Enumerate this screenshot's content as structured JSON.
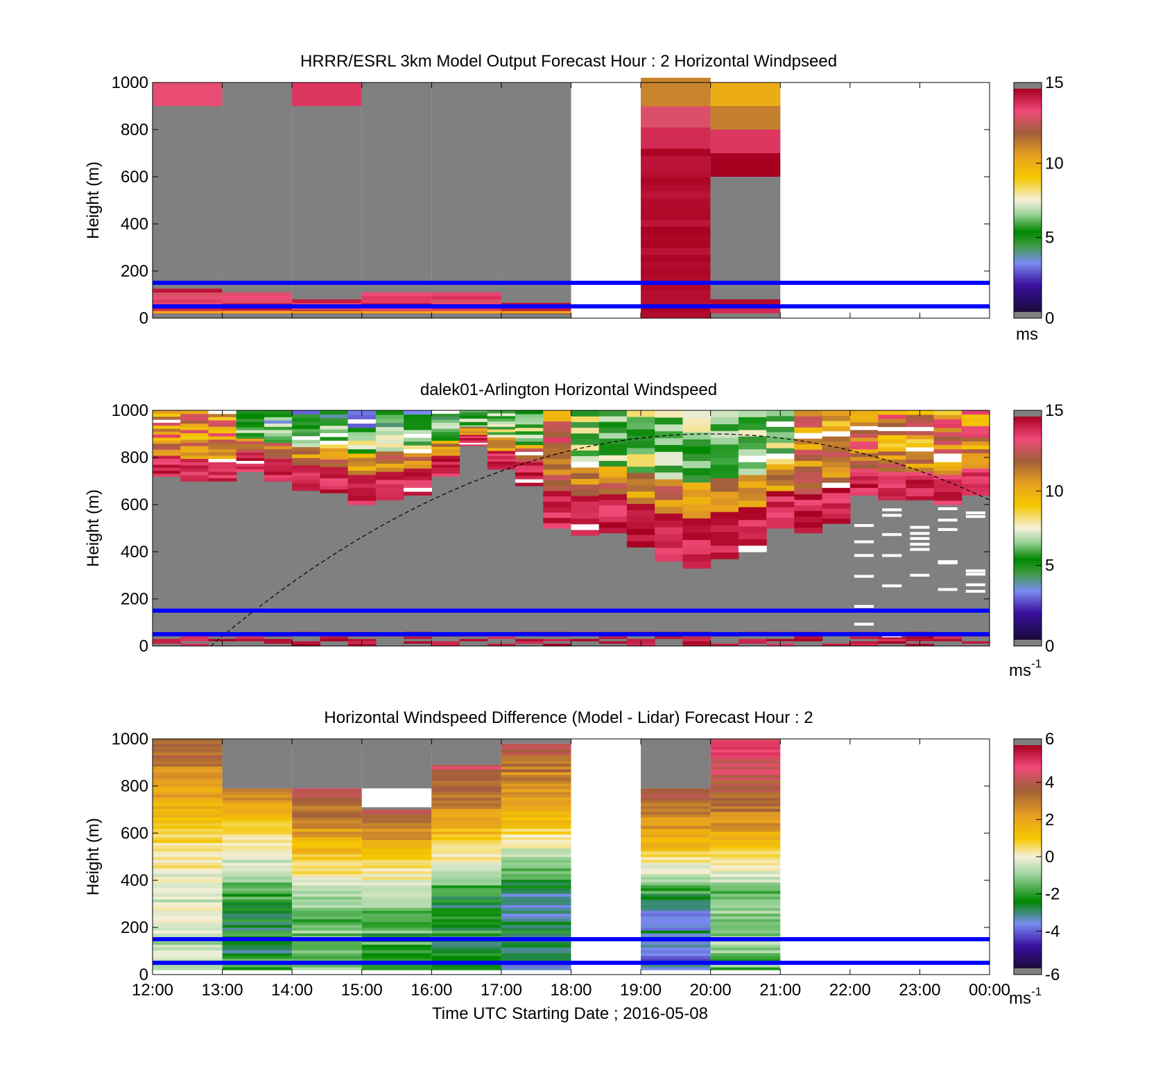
{
  "figure": {
    "xlabel": "Time UTC  Starting Date ; 2016-05-08",
    "x_ticks": [
      "12:00",
      "13:00",
      "14:00",
      "15:00",
      "16:00",
      "17:00",
      "18:00",
      "19:00",
      "20:00",
      "21:00",
      "22:00",
      "23:00",
      "00:00"
    ]
  },
  "colors": {
    "missing": "#808080",
    "overlay_lines": "#0000ff",
    "wind_colormap": [
      "#1a0a3a",
      "#3a10a0",
      "#7a8cf0",
      "#3c9a3c",
      "#008800",
      "#9ed49e",
      "#f5f0dc",
      "#f5c800",
      "#e8a020",
      "#a0603a",
      "#f04a78",
      "#a80020"
    ],
    "diff_colormap": [
      "#1a0a3a",
      "#3a10a0",
      "#7a8cf0",
      "#008800",
      "#9ed49e",
      "#f5f0dc",
      "#f5c800",
      "#e8a020",
      "#a0603a",
      "#f04a78",
      "#a80020"
    ]
  },
  "chart_data": [
    {
      "type": "heatmap",
      "title": "HRRR/ESRL 3km Model Output   Forecast Hour : 2 Horizontal Windpseed",
      "ylabel": "Height (m)",
      "xlim": [
        "12:00",
        "00:00"
      ],
      "ylim": [
        0,
        1000
      ],
      "y_ticks": [
        "0",
        "200",
        "400",
        "600",
        "800",
        "1000"
      ],
      "colorbar": {
        "ticks": [
          "0",
          "5",
          "10",
          "15"
        ],
        "range": [
          0,
          15
        ],
        "unit_label": "ms",
        "unit_sup": ""
      },
      "reference_lines_m": [
        50,
        150
      ],
      "columns": [
        {
          "start": "12:00",
          "end": "13:00",
          "top_m": 1000,
          "profile": "model_low_jet_a"
        },
        {
          "start": "13:00",
          "end": "14:00",
          "top_m": 1000,
          "profile": "model_low_jet_b"
        },
        {
          "start": "14:00",
          "end": "15:00",
          "top_m": 1000,
          "profile": "model_low_jet_c"
        },
        {
          "start": "15:00",
          "end": "16:00",
          "top_m": 1000,
          "profile": "model_low_jet_b"
        },
        {
          "start": "16:00",
          "end": "17:00",
          "top_m": 1000,
          "profile": "model_low_jet_b"
        },
        {
          "start": "17:00",
          "end": "18:00",
          "top_m": 1000,
          "profile": "model_low_jet_d"
        },
        {
          "start": "19:00",
          "end": "20:00",
          "top_m": 1000,
          "profile": "model_full_strong"
        },
        {
          "start": "20:00",
          "end": "21:00",
          "top_m": 1000,
          "profile": "model_upper_strong"
        }
      ],
      "note_values_ms": {
        "12:00-13:00 above 900 m": 13.5,
        "14:00-15:00 above 900 m": 14,
        "19:00-20:00 at 950 m": 11.5,
        "19:00-20:00 at 850 m": 13,
        "19:00-20:00 at 400 m": 15,
        "20:00-21:00 at 950 m": 10.5,
        "20:00-21:00 at 850 m": 11.5,
        "20:00-21:00 at 750 m": 14,
        "20:00-21:00 at 650 m": 15
      }
    },
    {
      "type": "heatmap",
      "title": "dalek01-Arlington  Horizontal Windspeed",
      "ylabel": "Height (m)",
      "xlim": [
        "12:00",
        "00:00"
      ],
      "ylim": [
        0,
        1000
      ],
      "y_ticks": [
        "0",
        "200",
        "400",
        "600",
        "800",
        "1000"
      ],
      "colorbar": {
        "ticks": [
          "0",
          "5",
          "10",
          "15"
        ],
        "range": [
          0,
          15
        ],
        "unit_label": "ms",
        "unit_sup": "-1"
      },
      "reference_lines_m": [
        50,
        150
      ],
      "boundary_curve": {
        "style": "dashed",
        "peak_time": "20:00",
        "peak_m": 900,
        "start": "12:50",
        "end": "00:00"
      },
      "data_bottom_m": [
        720,
        700,
        700,
        740,
        700,
        660,
        650,
        600,
        620,
        640,
        720,
        850,
        750,
        680,
        500,
        470,
        480,
        420,
        360,
        330,
        370,
        400,
        500,
        480,
        520,
        640,
        620,
        620,
        600,
        640
      ]
    },
    {
      "type": "heatmap",
      "title": "Horizontal Windspeed Difference (Model - Lidar) Forecast Hour : 2",
      "ylabel": "Height (m)",
      "xlim": [
        "12:00",
        "00:00"
      ],
      "ylim": [
        0,
        1000
      ],
      "y_ticks": [
        "0",
        "200",
        "400",
        "600",
        "800",
        "1000"
      ],
      "colorbar": {
        "ticks": [
          "-6",
          "-4",
          "-2",
          "0",
          "2",
          "4",
          "6"
        ],
        "range": [
          -6,
          6
        ],
        "unit_label": "ms",
        "unit_sup": "-1"
      },
      "reference_lines_m": [
        50,
        150
      ],
      "columns": [
        {
          "start": "12:00",
          "end": "13:00",
          "top_m": 1000,
          "diff_top": 4,
          "diff_mid": 1.5,
          "diff_low": -0.5
        },
        {
          "start": "13:00",
          "end": "14:00",
          "top_m": 790,
          "diff_top": 3,
          "diff_mid": 0,
          "diff_low": -2.5
        },
        {
          "start": "14:00",
          "end": "15:00",
          "top_m": 790,
          "diff_top": 4.5,
          "diff_mid": 1.5,
          "diff_low": -1.5
        },
        {
          "start": "15:00",
          "end": "16:00",
          "top_m": 700,
          "diff_top": 4,
          "diff_mid": 1,
          "diff_low": -2
        },
        {
          "start": "16:00",
          "end": "17:00",
          "top_m": 890,
          "diff_top": 4.5,
          "diff_mid": 1.5,
          "diff_low": -2.5
        },
        {
          "start": "17:00",
          "end": "18:00",
          "top_m": 980,
          "diff_top": 4,
          "diff_mid": 1.5,
          "diff_low": -3
        },
        {
          "start": "19:00",
          "end": "20:00",
          "top_m": 790,
          "diff_top": 4,
          "diff_mid": 1.5,
          "diff_low": -3.5
        },
        {
          "start": "20:00",
          "end": "21:00",
          "top_m": 1000,
          "diff_top": 5,
          "diff_mid": 3,
          "diff_low": -1.5
        }
      ]
    }
  ]
}
